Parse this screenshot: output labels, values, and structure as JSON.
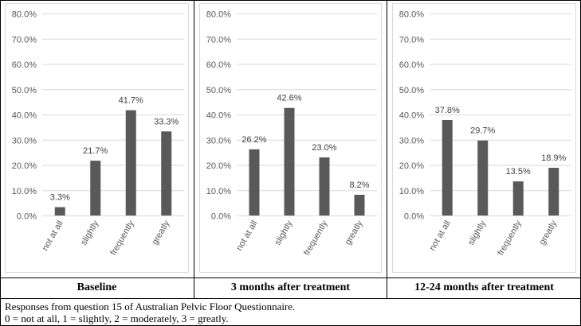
{
  "chart_data": [
    {
      "type": "bar",
      "title": "Baseline",
      "categories": [
        "not at all",
        "slightly",
        "frequently",
        "greatly"
      ],
      "values": [
        3.3,
        21.7,
        41.7,
        33.3
      ],
      "value_labels": [
        "3.3%",
        "21.7%",
        "41.7%",
        "33.3%"
      ],
      "ylim": [
        0,
        80
      ],
      "yticks": [
        "0.0%",
        "10.0%",
        "20.0%",
        "30.0%",
        "40.0%",
        "50.0%",
        "60.0%",
        "70.0%",
        "80.0%"
      ],
      "bar_color": "#595959"
    },
    {
      "type": "bar",
      "title": "3 months after treatment",
      "categories": [
        "not at all",
        "slightly",
        "frequently",
        "greatly"
      ],
      "values": [
        26.2,
        42.6,
        23.0,
        8.2
      ],
      "value_labels": [
        "26.2%",
        "42.6%",
        "23.0%",
        "8.2%"
      ],
      "ylim": [
        0,
        80
      ],
      "yticks": [
        "0.0%",
        "10.0%",
        "20.0%",
        "30.0%",
        "40.0%",
        "50.0%",
        "60.0%",
        "70.0%",
        "80.0%"
      ],
      "bar_color": "#595959"
    },
    {
      "type": "bar",
      "title": "12-24 months after treatment",
      "categories": [
        "not at all",
        "slightly",
        "frequently",
        "greatly"
      ],
      "values": [
        37.8,
        29.7,
        13.5,
        18.9
      ],
      "value_labels": [
        "37.8%",
        "29.7%",
        "13.5%",
        "18.9%"
      ],
      "ylim": [
        0,
        80
      ],
      "yticks": [
        "0.0%",
        "10.0%",
        "20.0%",
        "30.0%",
        "40.0%",
        "50.0%",
        "60.0%",
        "70.0%",
        "80.0%"
      ],
      "bar_color": "#595959"
    }
  ],
  "captions": [
    "Baseline",
    "3 months after treatment",
    "12-24 months after treatment"
  ],
  "footnote": {
    "line1": "Responses from question 15 of Australian Pelvic Floor Questionnaire.",
    "line2": "0 = not at all, 1 = slightly, 2 = moderately, 3 = greatly."
  }
}
